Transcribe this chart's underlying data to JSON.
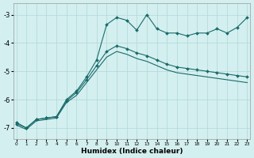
{
  "xlabel": "Humidex (Indice chaleur)",
  "bg_color": "#d4efef",
  "line_color": "#1a6b6b",
  "grid_color": "#aed8d8",
  "xlim": [
    -0.3,
    23.3
  ],
  "ylim": [
    -7.4,
    -2.6
  ],
  "yticks": [
    -7,
    -6,
    -5,
    -4,
    -3
  ],
  "xticks": [
    0,
    1,
    2,
    3,
    4,
    5,
    6,
    7,
    8,
    9,
    10,
    11,
    12,
    13,
    14,
    15,
    16,
    17,
    18,
    19,
    20,
    21,
    22,
    23
  ],
  "line1_x": [
    0,
    1,
    2,
    3,
    4,
    5,
    6,
    7,
    8,
    9,
    10,
    11,
    12,
    13,
    14,
    15,
    16,
    17,
    18,
    19,
    20,
    21,
    22,
    23
  ],
  "line1_y": [
    -6.8,
    -7.0,
    -6.7,
    -6.65,
    -6.6,
    -6.0,
    -5.7,
    -5.2,
    -4.6,
    -3.35,
    -3.1,
    -3.2,
    -3.55,
    -3.0,
    -3.5,
    -3.65,
    -3.65,
    -3.75,
    -3.65,
    -3.65,
    -3.5,
    -3.65,
    -3.45,
    -3.1
  ],
  "line2_x": [
    0,
    1,
    2,
    3,
    4,
    5,
    6,
    7,
    8,
    9,
    10,
    11,
    12,
    13,
    14,
    15,
    16,
    17,
    18,
    19,
    20,
    21,
    22,
    23
  ],
  "line2_y": [
    -6.85,
    -7.0,
    -6.7,
    -6.65,
    -6.6,
    -6.05,
    -5.75,
    -5.3,
    -4.8,
    -4.3,
    -4.1,
    -4.2,
    -4.35,
    -4.45,
    -4.6,
    -4.75,
    -4.85,
    -4.9,
    -4.95,
    -5.0,
    -5.05,
    -5.1,
    -5.15,
    -5.2
  ],
  "line3_x": [
    0,
    1,
    2,
    3,
    4,
    5,
    6,
    7,
    8,
    9,
    10,
    11,
    12,
    13,
    14,
    15,
    16,
    17,
    18,
    19,
    20,
    21,
    22,
    23
  ],
  "line3_y": [
    -6.9,
    -7.05,
    -6.75,
    -6.7,
    -6.65,
    -6.1,
    -5.85,
    -5.4,
    -4.95,
    -4.5,
    -4.3,
    -4.4,
    -4.55,
    -4.65,
    -4.8,
    -4.95,
    -5.05,
    -5.1,
    -5.15,
    -5.2,
    -5.25,
    -5.3,
    -5.35,
    -5.4
  ]
}
